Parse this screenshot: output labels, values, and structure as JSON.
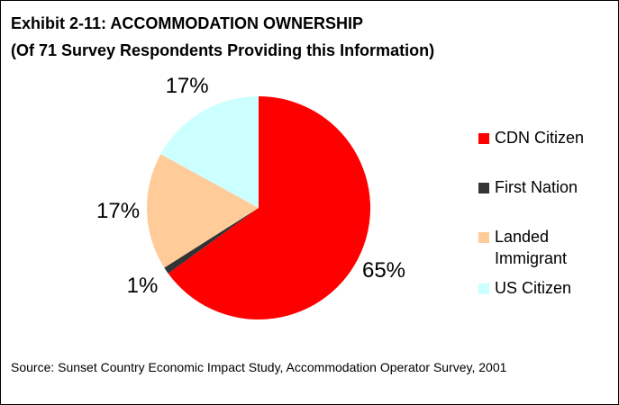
{
  "chart_data": {
    "type": "pie",
    "title": "Exhibit 2-11:  ACCOMMODATION OWNERSHIP",
    "subtitle": "(Of 71 Survey Respondents Providing  this Information)",
    "categories": [
      "CDN Citizen",
      "First Nation",
      "Landed Immigrant",
      "US Citizen"
    ],
    "values": [
      65,
      1,
      17,
      17
    ],
    "value_labels": [
      "65%",
      "1%",
      "17%",
      "17%"
    ],
    "colors": [
      "#ff0000",
      "#333333",
      "#ffcc99",
      "#ccffff"
    ],
    "legend": "right",
    "source": "Source: Sunset Country Economic Impact Study, Accommodation Operator Survey, 2001"
  }
}
